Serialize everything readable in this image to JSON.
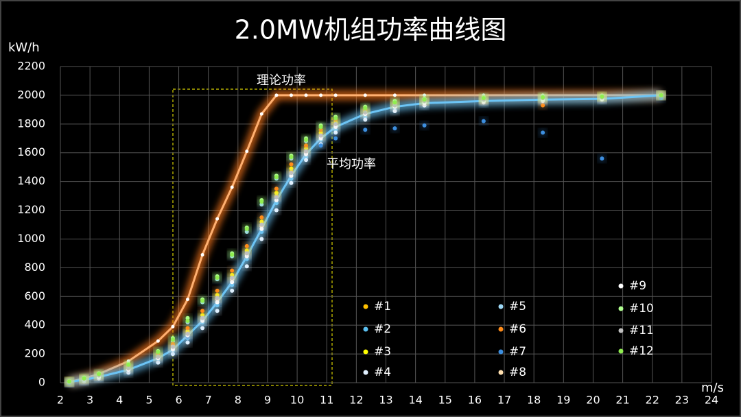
{
  "chart_data": {
    "type": "scatter",
    "title": "2.0MW机组功率曲线图",
    "ylabel": "kW/h",
    "xlabel": "m/s",
    "xlim": [
      2,
      24
    ],
    "xticks": [
      2,
      3,
      4,
      5,
      6,
      7,
      8,
      9,
      10,
      11,
      12,
      13,
      14,
      15,
      16,
      17,
      18,
      19,
      20,
      21,
      22,
      23,
      24
    ],
    "ylim": [
      0,
      2200
    ],
    "yticks": [
      0,
      200,
      400,
      600,
      800,
      1000,
      1200,
      1400,
      1600,
      1800,
      2000,
      2200
    ],
    "grid": true,
    "x": [
      2.3,
      2.8,
      3.3,
      4.3,
      5.3,
      5.8,
      6.3,
      6.8,
      7.3,
      7.8,
      8.3,
      8.8,
      9.3,
      9.8,
      10.3,
      10.8,
      11.3,
      12.3,
      13.3,
      14.3,
      16.3,
      18.3,
      20.3,
      22.3
    ],
    "series": [
      {
        "name": "理论功率",
        "type": "line",
        "color": "#ff7a1a",
        "values": [
          5,
          30,
          60,
          150,
          290,
          390,
          580,
          890,
          1140,
          1360,
          1610,
          1870,
          2000,
          2000,
          2000,
          2000,
          2000,
          2000,
          2000,
          2000,
          2000,
          2000,
          2000,
          2000
        ]
      },
      {
        "name": "平均功率",
        "type": "line",
        "color": "#6cc4f5",
        "values": [
          5,
          20,
          40,
          90,
          170,
          230,
          330,
          430,
          560,
          700,
          880,
          1070,
          1270,
          1440,
          1590,
          1700,
          1780,
          1870,
          1920,
          1945,
          1960,
          1970,
          1975,
          2000
        ]
      },
      {
        "name": "#1",
        "type": "scatter",
        "color": "#ffc000",
        "values": [
          5,
          22,
          45,
          100,
          180,
          250,
          350,
          450,
          590,
          730,
          900,
          1100,
          1300,
          1470,
          1610,
          1720,
          1800,
          1880,
          1930,
          1960,
          1970,
          1980,
          1990,
          2000
        ]
      },
      {
        "name": "#2",
        "type": "scatter",
        "color": "#5bc0f0",
        "values": [
          0,
          15,
          35,
          80,
          160,
          220,
          310,
          420,
          540,
          680,
          860,
          1050,
          1250,
          1420,
          1570,
          1690,
          1760,
          1850,
          1900,
          1930,
          1950,
          1960,
          1970,
          2000
        ]
      },
      {
        "name": "#3",
        "type": "scatter",
        "color": "#ffff00",
        "values": [
          10,
          25,
          50,
          110,
          190,
          260,
          360,
          470,
          610,
          750,
          920,
          1120,
          1320,
          1490,
          1630,
          1740,
          1810,
          1890,
          1940,
          1960,
          1970,
          1980,
          1990,
          2000
        ]
      },
      {
        "name": "#4",
        "type": "scatter",
        "color": "#e0f0ff",
        "values": [
          0,
          10,
          30,
          70,
          140,
          200,
          280,
          380,
          500,
          640,
          810,
          1000,
          1200,
          1390,
          1550,
          1660,
          1740,
          1830,
          1890,
          1930,
          1950,
          1960,
          1970,
          2000
        ]
      },
      {
        "name": "#5",
        "type": "scatter",
        "color": "#9dd8f5",
        "values": [
          5,
          30,
          60,
          120,
          210,
          290,
          420,
          560,
          720,
          880,
          1050,
          1240,
          1420,
          1560,
          1680,
          1780,
          1840,
          1910,
          1950,
          1970,
          1980,
          1990,
          1990,
          2000
        ]
      },
      {
        "name": "#6",
        "type": "scatter",
        "color": "#ff8c1a",
        "values": [
          8,
          28,
          55,
          120,
          200,
          270,
          380,
          500,
          640,
          780,
          950,
          1150,
          1350,
          1520,
          1650,
          1760,
          1830,
          1900,
          1950,
          1960,
          1970,
          1930,
          1990,
          2000
        ]
      },
      {
        "name": "#7",
        "type": "scatter",
        "color": "#3d8fe0",
        "values": [
          0,
          18,
          40,
          90,
          170,
          230,
          320,
          430,
          560,
          700,
          880,
          1070,
          1280,
          1450,
          1600,
          1650,
          1700,
          1760,
          1770,
          1790,
          1820,
          1740,
          1560,
          1980
        ]
      },
      {
        "name": "#8",
        "type": "scatter",
        "color": "#ffe0b0",
        "values": [
          5,
          20,
          45,
          95,
          175,
          240,
          340,
          440,
          580,
          720,
          890,
          1090,
          1290,
          1460,
          1600,
          1710,
          1790,
          1870,
          1920,
          1950,
          1960,
          1970,
          1980,
          2000
        ]
      },
      {
        "name": "#9",
        "type": "scatter",
        "color": "#ffffff",
        "values": [
          5,
          20,
          40,
          90,
          170,
          230,
          330,
          430,
          560,
          700,
          880,
          1070,
          1270,
          1440,
          1590,
          1700,
          1780,
          1870,
          1920,
          1945,
          1960,
          1970,
          1975,
          2000
        ]
      },
      {
        "name": "#10",
        "type": "scatter",
        "color": "#b0ff90",
        "values": [
          10,
          35,
          65,
          130,
          220,
          310,
          450,
          580,
          740,
          900,
          1080,
          1270,
          1440,
          1580,
          1700,
          1790,
          1850,
          1920,
          1960,
          1975,
          1985,
          1990,
          1995,
          2000
        ]
      },
      {
        "name": "#11",
        "type": "scatter",
        "color": "#c0c0c0",
        "values": [
          5,
          25,
          50,
          100,
          180,
          250,
          340,
          450,
          590,
          730,
          900,
          1100,
          1290,
          1460,
          1610,
          1720,
          1800,
          1880,
          1930,
          1960,
          1970,
          1980,
          1985,
          2000
        ]
      },
      {
        "name": "#12",
        "type": "scatter",
        "color": "#90ee50",
        "values": [
          8,
          30,
          60,
          125,
          215,
          300,
          430,
          570,
          730,
          890,
          1070,
          1260,
          1430,
          1570,
          1690,
          1780,
          1840,
          1910,
          1950,
          1970,
          1980,
          1985,
          1990,
          2000
        ]
      }
    ]
  }
}
